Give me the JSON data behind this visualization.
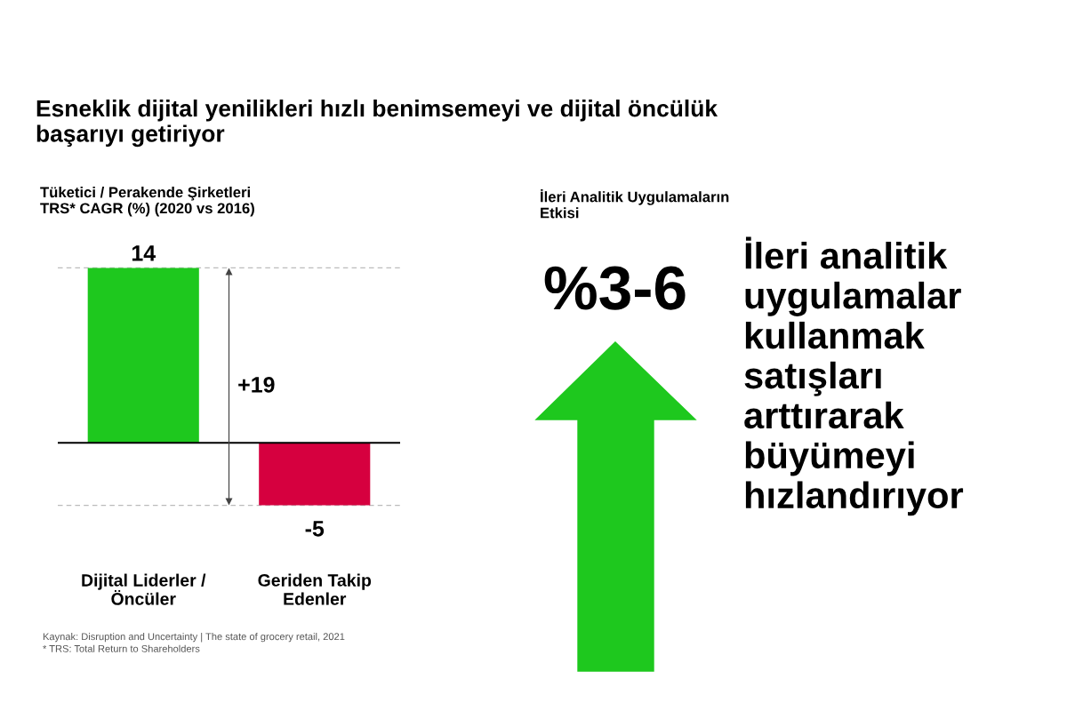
{
  "chart_data": [
    {
      "type": "bar",
      "title": "Esneklik dijital yenilikleri hızlı benimsemeyi ve dijital öncülük\nbaşarıyı getiriyor",
      "subtitle": "Tüketici / Perakende Şirketleri\nTRS* CAGR (%) (2020 vs 2016)",
      "categories": [
        "Dijital Liderler /\nÖncüler",
        "Geriden Takip\nEdenler"
      ],
      "values": [
        14,
        -5
      ],
      "colors": [
        "#1ec81e",
        "#d6003f"
      ],
      "data_labels": true,
      "ref_lines": [
        {
          "axis": "y",
          "value": 14,
          "color": "#bbbbbb",
          "line_style": "dashed"
        },
        {
          "axis": "y",
          "value": -5,
          "color": "#bbbbbb",
          "line_style": "dashed"
        }
      ],
      "annotations": [
        "+19",
        "Kaynak: Disruption and Uncertainty | The state of grocery retail, 2021\n* TRS: Total Return to Shareholders"
      ]
    },
    {
      "type": "other",
      "title": "İleri Analitik Uygulamaların\nEtkisi",
      "annotations": [
        "%3-6",
        "İleri analitik\nuygulamalar\nkullanmak\nsatışları\narttırarak\nbüyümeyi\nhızlandırıyor"
      ]
    }
  ]
}
